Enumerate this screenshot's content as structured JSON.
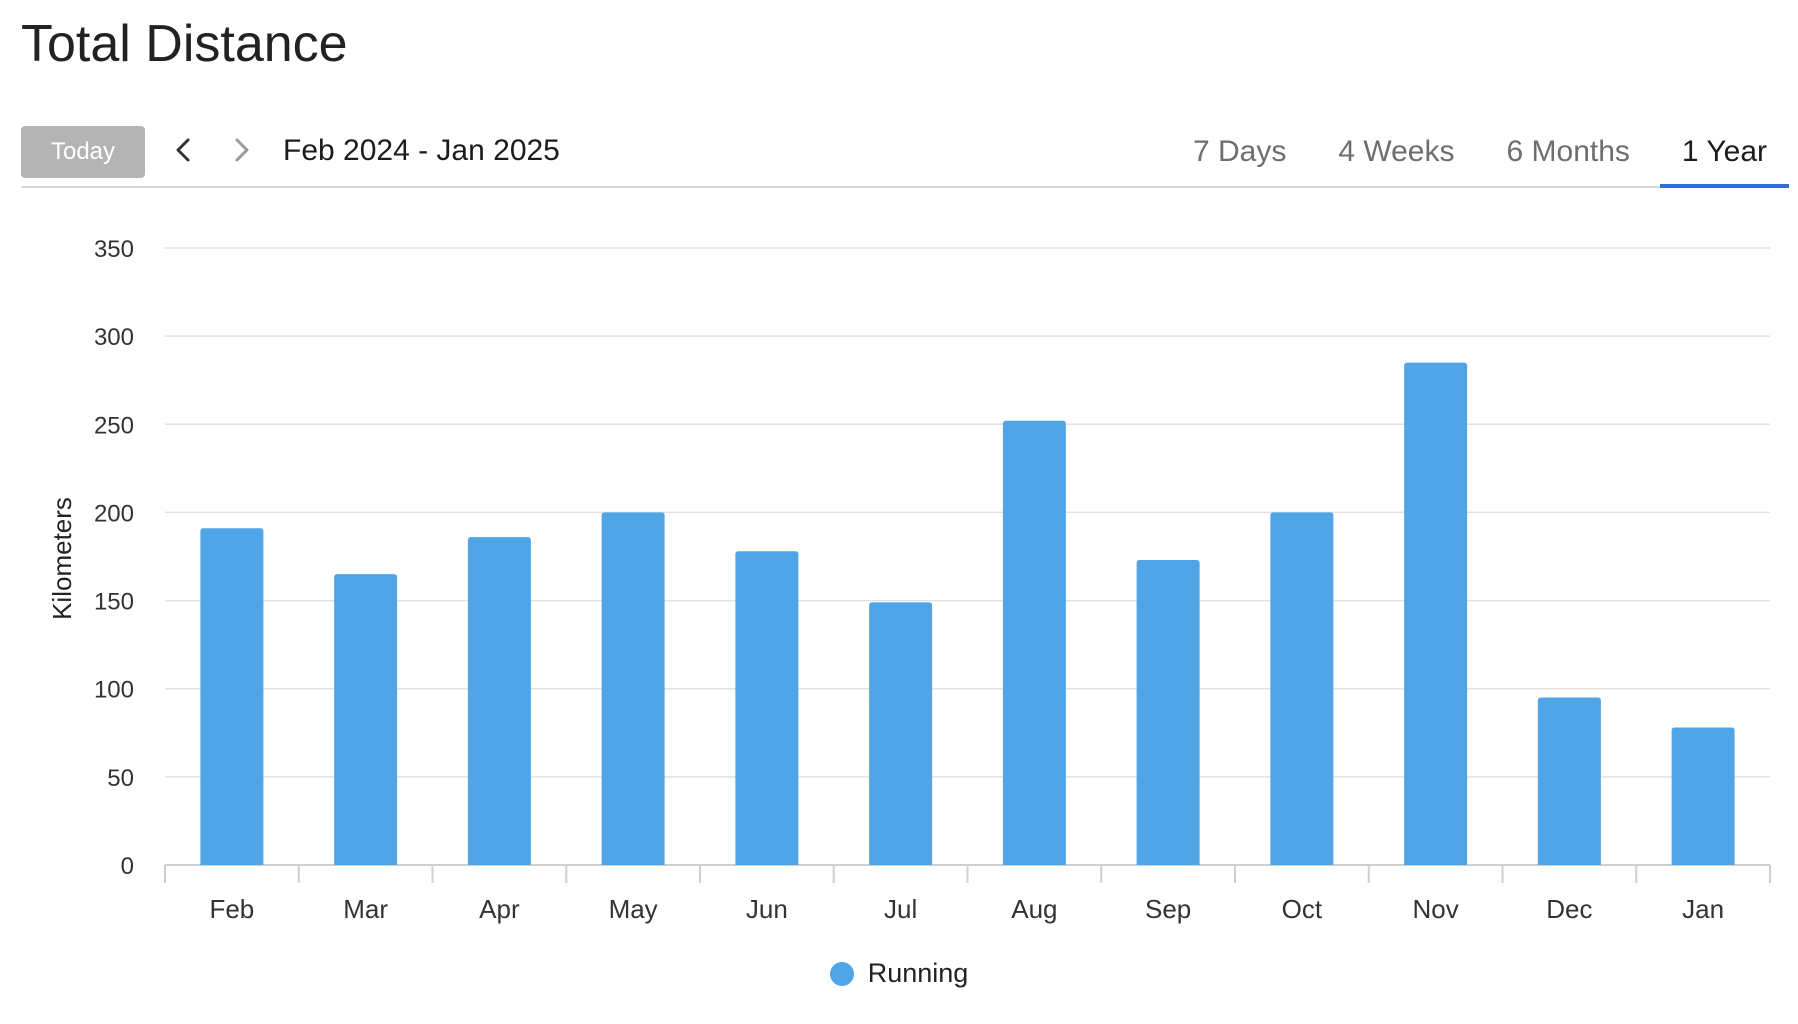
{
  "page": {
    "title": "Total Distance"
  },
  "toolbar": {
    "today_label": "Today",
    "date_range": "Feb 2024 - Jan 2025",
    "prev_icon": "chevron-left-icon",
    "next_icon": "chevron-right-icon",
    "tabs": [
      {
        "label": "7 Days",
        "active": false
      },
      {
        "label": "4 Weeks",
        "active": false
      },
      {
        "label": "6 Months",
        "active": false
      },
      {
        "label": "1 Year",
        "active": true
      }
    ],
    "active_tab_color": "#2f6fd0",
    "today_bg_color": "#b4b4b4"
  },
  "chart_data": {
    "type": "bar",
    "title": "",
    "xlabel": "",
    "ylabel": "Kilometers",
    "categories": [
      "Feb",
      "Mar",
      "Apr",
      "May",
      "Jun",
      "Jul",
      "Aug",
      "Sep",
      "Oct",
      "Nov",
      "Dec",
      "Jan"
    ],
    "series": [
      {
        "name": "Running",
        "color": "#4fa5e6",
        "values": [
          191,
          165,
          186,
          200,
          178,
          149,
          252,
          173,
          200,
          285,
          95,
          78
        ]
      }
    ],
    "ylim": [
      0,
      350
    ],
    "yticks": [
      0,
      50,
      100,
      150,
      200,
      250,
      300,
      350
    ],
    "grid": true,
    "legend_position": "bottom-center"
  }
}
